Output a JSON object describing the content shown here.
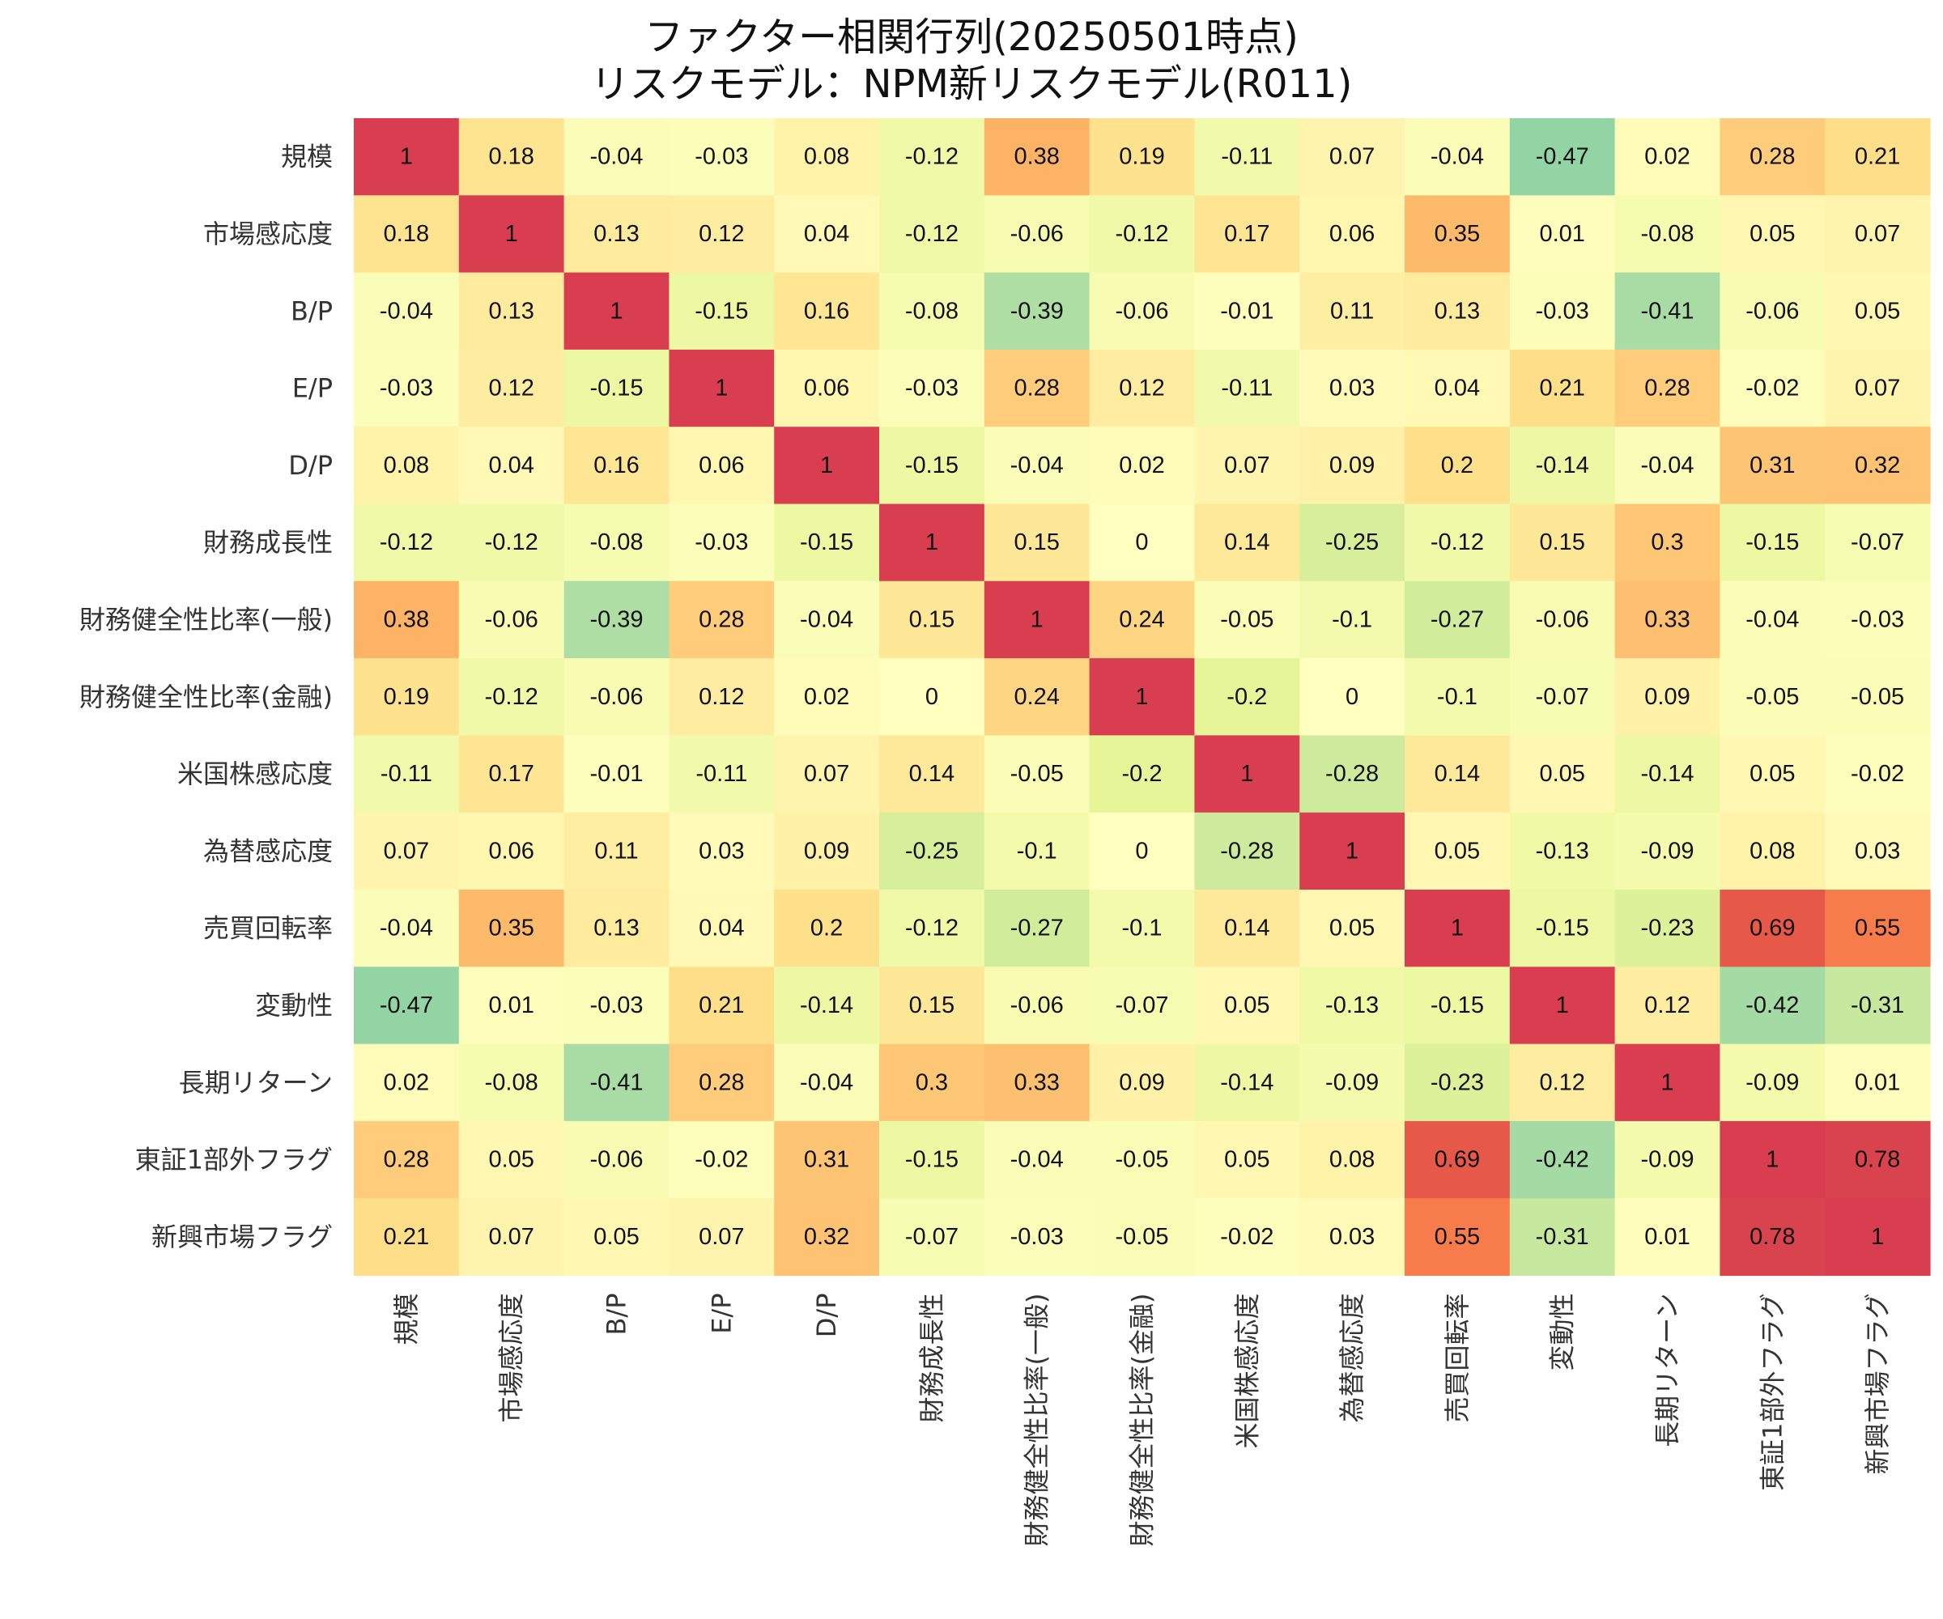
{
  "chart_data": {
    "type": "heatmap",
    "title_lines": [
      "ファクター相関行列(20250501時点)",
      "リスクモデル：NPM新リスクモデル(R011)"
    ],
    "xlabel": "",
    "ylabel": "",
    "colormap": "Spectral_r",
    "value_range": [
      -1,
      1
    ],
    "legend": "none",
    "categories": [
      "規模",
      "市場感応度",
      "B/P",
      "E/P",
      "D/P",
      "財務成長性",
      "財務健全性比率(一般)",
      "財務健全性比率(金融)",
      "米国株感応度",
      "為替感応度",
      "売買回転率",
      "変動性",
      "長期リターン",
      "東証1部外フラグ",
      "新興市場フラグ"
    ],
    "values": [
      [
        1,
        0.18,
        -0.04,
        -0.03,
        0.08,
        -0.12,
        0.38,
        0.19,
        -0.11,
        0.07,
        -0.04,
        -0.47,
        0.02,
        0.28,
        0.21
      ],
      [
        0.18,
        1,
        0.13,
        0.12,
        0.04,
        -0.12,
        -0.06,
        -0.12,
        0.17,
        0.06,
        0.35,
        0.01,
        -0.08,
        0.05,
        0.07
      ],
      [
        -0.04,
        0.13,
        1,
        -0.15,
        0.16,
        -0.08,
        -0.39,
        -0.06,
        -0.01,
        0.11,
        0.13,
        -0.03,
        -0.41,
        -0.06,
        0.05
      ],
      [
        -0.03,
        0.12,
        -0.15,
        1,
        0.06,
        -0.03,
        0.28,
        0.12,
        -0.11,
        0.03,
        0.04,
        0.21,
        0.28,
        -0.02,
        0.07
      ],
      [
        0.08,
        0.04,
        0.16,
        0.06,
        1,
        -0.15,
        -0.04,
        0.02,
        0.07,
        0.09,
        0.2,
        -0.14,
        -0.04,
        0.31,
        0.32
      ],
      [
        -0.12,
        -0.12,
        -0.08,
        -0.03,
        -0.15,
        1,
        0.15,
        0,
        0.14,
        -0.25,
        -0.12,
        0.15,
        0.3,
        -0.15,
        -0.07
      ],
      [
        0.38,
        -0.06,
        -0.39,
        0.28,
        -0.04,
        0.15,
        1,
        0.24,
        -0.05,
        -0.1,
        -0.27,
        -0.06,
        0.33,
        -0.04,
        -0.03
      ],
      [
        0.19,
        -0.12,
        -0.06,
        0.12,
        0.02,
        0,
        0.24,
        1,
        -0.2,
        0,
        -0.1,
        -0.07,
        0.09,
        -0.05,
        -0.05
      ],
      [
        -0.11,
        0.17,
        -0.01,
        -0.11,
        0.07,
        0.14,
        -0.05,
        -0.2,
        1,
        -0.28,
        0.14,
        0.05,
        -0.14,
        0.05,
        -0.02
      ],
      [
        0.07,
        0.06,
        0.11,
        0.03,
        0.09,
        -0.25,
        -0.1,
        0,
        -0.28,
        1,
        0.05,
        -0.13,
        -0.09,
        0.08,
        0.03
      ],
      [
        -0.04,
        0.35,
        0.13,
        0.04,
        0.2,
        -0.12,
        -0.27,
        -0.1,
        0.14,
        0.05,
        1,
        -0.15,
        -0.23,
        0.69,
        0.55
      ],
      [
        -0.47,
        0.01,
        -0.03,
        0.21,
        -0.14,
        0.15,
        -0.06,
        -0.07,
        0.05,
        -0.13,
        -0.15,
        1,
        0.12,
        -0.42,
        -0.31
      ],
      [
        0.02,
        -0.08,
        -0.41,
        0.28,
        -0.04,
        0.3,
        0.33,
        0.09,
        -0.14,
        -0.09,
        -0.23,
        0.12,
        1,
        -0.09,
        0.01
      ],
      [
        0.28,
        0.05,
        -0.06,
        -0.02,
        0.31,
        -0.15,
        -0.04,
        -0.05,
        0.05,
        0.08,
        0.69,
        -0.42,
        -0.09,
        1,
        0.78
      ],
      [
        0.21,
        0.07,
        0.05,
        0.07,
        0.32,
        -0.07,
        -0.03,
        -0.05,
        -0.02,
        0.03,
        0.55,
        -0.31,
        0.01,
        0.78,
        1
      ]
    ]
  }
}
